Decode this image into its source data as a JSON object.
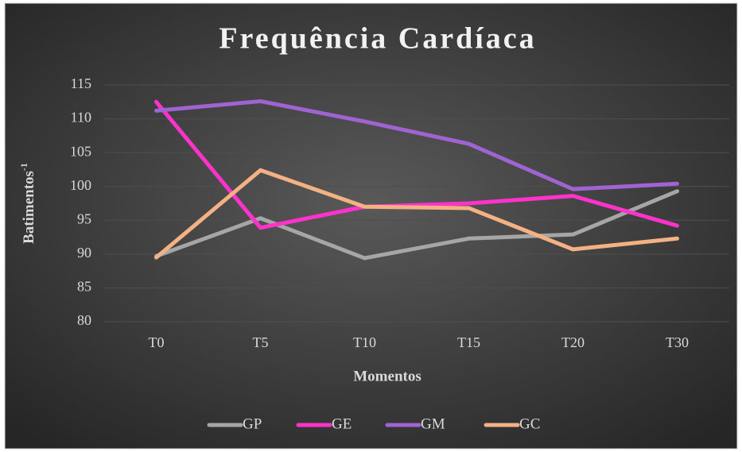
{
  "chart_data": {
    "type": "line",
    "title": "Frequência Cardíaca",
    "x_label": "Momentos",
    "y_label": "Batimentos",
    "y_label_superscript": "-1",
    "categories": [
      "T0",
      "T5",
      "T10",
      "T15",
      "T20",
      "T30"
    ],
    "series": [
      {
        "name": "GP",
        "color": "#a6a6a6",
        "values": [
          89.7,
          95.3,
          89.4,
          92.3,
          92.9,
          99.3
        ]
      },
      {
        "name": "GE",
        "color": "#ff33cc",
        "values": [
          112.5,
          93.9,
          97.0,
          97.5,
          98.6,
          94.2
        ]
      },
      {
        "name": "GM",
        "color": "#a064d2",
        "values": [
          111.2,
          112.6,
          109.6,
          106.3,
          99.6,
          100.4
        ]
      },
      {
        "name": "GC",
        "color": "#f4b183",
        "values": [
          89.5,
          102.4,
          97.0,
          96.8,
          90.7,
          92.3
        ]
      }
    ],
    "ylim": [
      80,
      115
    ],
    "yticks": [
      80,
      85,
      90,
      95,
      100,
      105,
      110,
      115
    ],
    "grid": true,
    "legend": "bottom"
  }
}
